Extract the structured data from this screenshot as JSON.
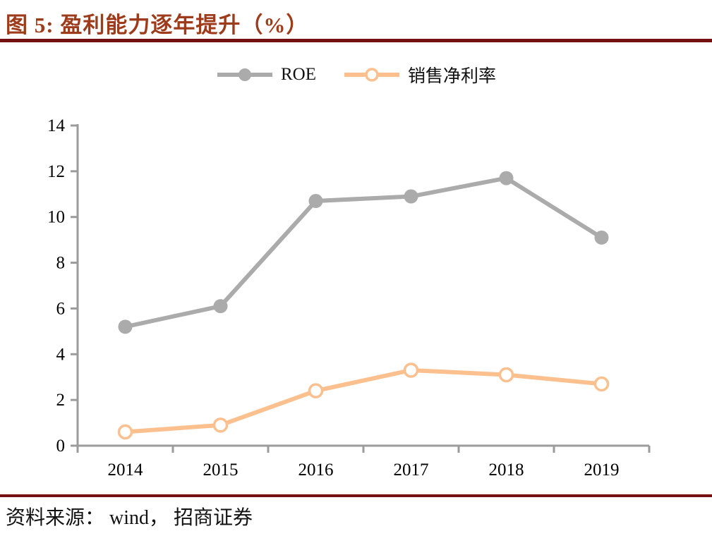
{
  "header": {
    "title": "图 5:  盈利能力逐年提升（%）",
    "title_color": "#9E3B1B",
    "rule_color": "#741012"
  },
  "legend": [
    {
      "label": "ROE",
      "color": "#ABABAB",
      "marker": "filled-circle"
    },
    {
      "label": "销售净利率",
      "color": "#FBC08E",
      "marker": "open-circle"
    }
  ],
  "chart_data": {
    "type": "line",
    "title": "盈利能力逐年提升（%）",
    "xlabel": "",
    "ylabel": "",
    "categories": [
      "2014",
      "2015",
      "2016",
      "2017",
      "2018",
      "2019"
    ],
    "series": [
      {
        "name": "ROE",
        "color": "#ABABAB",
        "marker": "filled",
        "values": [
          5.2,
          6.1,
          10.7,
          10.9,
          11.7,
          9.1
        ]
      },
      {
        "name": "销售净利率",
        "color": "#FBC08E",
        "marker": "open",
        "values": [
          0.6,
          0.9,
          2.4,
          3.3,
          3.1,
          2.7
        ]
      }
    ],
    "ylim": [
      0,
      14
    ],
    "yticks": [
      0,
      2,
      4,
      6,
      8,
      10,
      12,
      14
    ],
    "grid": false,
    "legend_position": "top",
    "axis_color": "#9B9B9B",
    "tick_label_color": "#000000"
  },
  "footer": {
    "source_text": "资料来源： wind， 招商证券"
  }
}
